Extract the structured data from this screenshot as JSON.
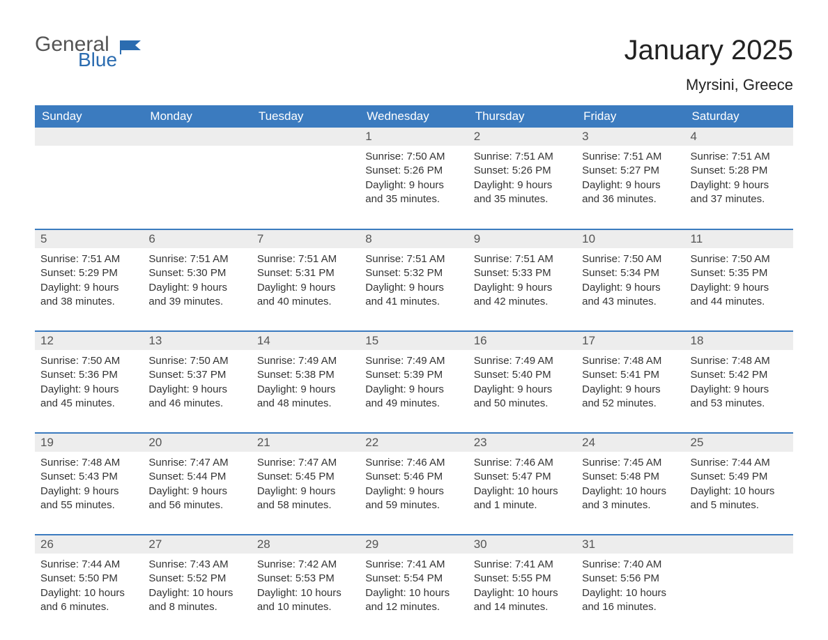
{
  "logo": {
    "general": "General",
    "blue": "Blue",
    "flag_color": "#2b6cb0"
  },
  "title": "January 2025",
  "location": "Myrsini, Greece",
  "colors": {
    "header_bg": "#3b7bbf",
    "header_text": "#ffffff",
    "daynum_bg": "#ededed",
    "daynum_text": "#555555",
    "body_text": "#333333",
    "row_border": "#3b7bbf",
    "page_bg": "#ffffff"
  },
  "weekdays": [
    "Sunday",
    "Monday",
    "Tuesday",
    "Wednesday",
    "Thursday",
    "Friday",
    "Saturday"
  ],
  "weeks": [
    [
      {
        "day": "",
        "sunrise": "",
        "sunset": "",
        "daylight1": "",
        "daylight2": ""
      },
      {
        "day": "",
        "sunrise": "",
        "sunset": "",
        "daylight1": "",
        "daylight2": ""
      },
      {
        "day": "",
        "sunrise": "",
        "sunset": "",
        "daylight1": "",
        "daylight2": ""
      },
      {
        "day": "1",
        "sunrise": "Sunrise: 7:50 AM",
        "sunset": "Sunset: 5:26 PM",
        "daylight1": "Daylight: 9 hours",
        "daylight2": "and 35 minutes."
      },
      {
        "day": "2",
        "sunrise": "Sunrise: 7:51 AM",
        "sunset": "Sunset: 5:26 PM",
        "daylight1": "Daylight: 9 hours",
        "daylight2": "and 35 minutes."
      },
      {
        "day": "3",
        "sunrise": "Sunrise: 7:51 AM",
        "sunset": "Sunset: 5:27 PM",
        "daylight1": "Daylight: 9 hours",
        "daylight2": "and 36 minutes."
      },
      {
        "day": "4",
        "sunrise": "Sunrise: 7:51 AM",
        "sunset": "Sunset: 5:28 PM",
        "daylight1": "Daylight: 9 hours",
        "daylight2": "and 37 minutes."
      }
    ],
    [
      {
        "day": "5",
        "sunrise": "Sunrise: 7:51 AM",
        "sunset": "Sunset: 5:29 PM",
        "daylight1": "Daylight: 9 hours",
        "daylight2": "and 38 minutes."
      },
      {
        "day": "6",
        "sunrise": "Sunrise: 7:51 AM",
        "sunset": "Sunset: 5:30 PM",
        "daylight1": "Daylight: 9 hours",
        "daylight2": "and 39 minutes."
      },
      {
        "day": "7",
        "sunrise": "Sunrise: 7:51 AM",
        "sunset": "Sunset: 5:31 PM",
        "daylight1": "Daylight: 9 hours",
        "daylight2": "and 40 minutes."
      },
      {
        "day": "8",
        "sunrise": "Sunrise: 7:51 AM",
        "sunset": "Sunset: 5:32 PM",
        "daylight1": "Daylight: 9 hours",
        "daylight2": "and 41 minutes."
      },
      {
        "day": "9",
        "sunrise": "Sunrise: 7:51 AM",
        "sunset": "Sunset: 5:33 PM",
        "daylight1": "Daylight: 9 hours",
        "daylight2": "and 42 minutes."
      },
      {
        "day": "10",
        "sunrise": "Sunrise: 7:50 AM",
        "sunset": "Sunset: 5:34 PM",
        "daylight1": "Daylight: 9 hours",
        "daylight2": "and 43 minutes."
      },
      {
        "day": "11",
        "sunrise": "Sunrise: 7:50 AM",
        "sunset": "Sunset: 5:35 PM",
        "daylight1": "Daylight: 9 hours",
        "daylight2": "and 44 minutes."
      }
    ],
    [
      {
        "day": "12",
        "sunrise": "Sunrise: 7:50 AM",
        "sunset": "Sunset: 5:36 PM",
        "daylight1": "Daylight: 9 hours",
        "daylight2": "and 45 minutes."
      },
      {
        "day": "13",
        "sunrise": "Sunrise: 7:50 AM",
        "sunset": "Sunset: 5:37 PM",
        "daylight1": "Daylight: 9 hours",
        "daylight2": "and 46 minutes."
      },
      {
        "day": "14",
        "sunrise": "Sunrise: 7:49 AM",
        "sunset": "Sunset: 5:38 PM",
        "daylight1": "Daylight: 9 hours",
        "daylight2": "and 48 minutes."
      },
      {
        "day": "15",
        "sunrise": "Sunrise: 7:49 AM",
        "sunset": "Sunset: 5:39 PM",
        "daylight1": "Daylight: 9 hours",
        "daylight2": "and 49 minutes."
      },
      {
        "day": "16",
        "sunrise": "Sunrise: 7:49 AM",
        "sunset": "Sunset: 5:40 PM",
        "daylight1": "Daylight: 9 hours",
        "daylight2": "and 50 minutes."
      },
      {
        "day": "17",
        "sunrise": "Sunrise: 7:48 AM",
        "sunset": "Sunset: 5:41 PM",
        "daylight1": "Daylight: 9 hours",
        "daylight2": "and 52 minutes."
      },
      {
        "day": "18",
        "sunrise": "Sunrise: 7:48 AM",
        "sunset": "Sunset: 5:42 PM",
        "daylight1": "Daylight: 9 hours",
        "daylight2": "and 53 minutes."
      }
    ],
    [
      {
        "day": "19",
        "sunrise": "Sunrise: 7:48 AM",
        "sunset": "Sunset: 5:43 PM",
        "daylight1": "Daylight: 9 hours",
        "daylight2": "and 55 minutes."
      },
      {
        "day": "20",
        "sunrise": "Sunrise: 7:47 AM",
        "sunset": "Sunset: 5:44 PM",
        "daylight1": "Daylight: 9 hours",
        "daylight2": "and 56 minutes."
      },
      {
        "day": "21",
        "sunrise": "Sunrise: 7:47 AM",
        "sunset": "Sunset: 5:45 PM",
        "daylight1": "Daylight: 9 hours",
        "daylight2": "and 58 minutes."
      },
      {
        "day": "22",
        "sunrise": "Sunrise: 7:46 AM",
        "sunset": "Sunset: 5:46 PM",
        "daylight1": "Daylight: 9 hours",
        "daylight2": "and 59 minutes."
      },
      {
        "day": "23",
        "sunrise": "Sunrise: 7:46 AM",
        "sunset": "Sunset: 5:47 PM",
        "daylight1": "Daylight: 10 hours",
        "daylight2": "and 1 minute."
      },
      {
        "day": "24",
        "sunrise": "Sunrise: 7:45 AM",
        "sunset": "Sunset: 5:48 PM",
        "daylight1": "Daylight: 10 hours",
        "daylight2": "and 3 minutes."
      },
      {
        "day": "25",
        "sunrise": "Sunrise: 7:44 AM",
        "sunset": "Sunset: 5:49 PM",
        "daylight1": "Daylight: 10 hours",
        "daylight2": "and 5 minutes."
      }
    ],
    [
      {
        "day": "26",
        "sunrise": "Sunrise: 7:44 AM",
        "sunset": "Sunset: 5:50 PM",
        "daylight1": "Daylight: 10 hours",
        "daylight2": "and 6 minutes."
      },
      {
        "day": "27",
        "sunrise": "Sunrise: 7:43 AM",
        "sunset": "Sunset: 5:52 PM",
        "daylight1": "Daylight: 10 hours",
        "daylight2": "and 8 minutes."
      },
      {
        "day": "28",
        "sunrise": "Sunrise: 7:42 AM",
        "sunset": "Sunset: 5:53 PM",
        "daylight1": "Daylight: 10 hours",
        "daylight2": "and 10 minutes."
      },
      {
        "day": "29",
        "sunrise": "Sunrise: 7:41 AM",
        "sunset": "Sunset: 5:54 PM",
        "daylight1": "Daylight: 10 hours",
        "daylight2": "and 12 minutes."
      },
      {
        "day": "30",
        "sunrise": "Sunrise: 7:41 AM",
        "sunset": "Sunset: 5:55 PM",
        "daylight1": "Daylight: 10 hours",
        "daylight2": "and 14 minutes."
      },
      {
        "day": "31",
        "sunrise": "Sunrise: 7:40 AM",
        "sunset": "Sunset: 5:56 PM",
        "daylight1": "Daylight: 10 hours",
        "daylight2": "and 16 minutes."
      },
      {
        "day": "",
        "sunrise": "",
        "sunset": "",
        "daylight1": "",
        "daylight2": ""
      }
    ]
  ]
}
